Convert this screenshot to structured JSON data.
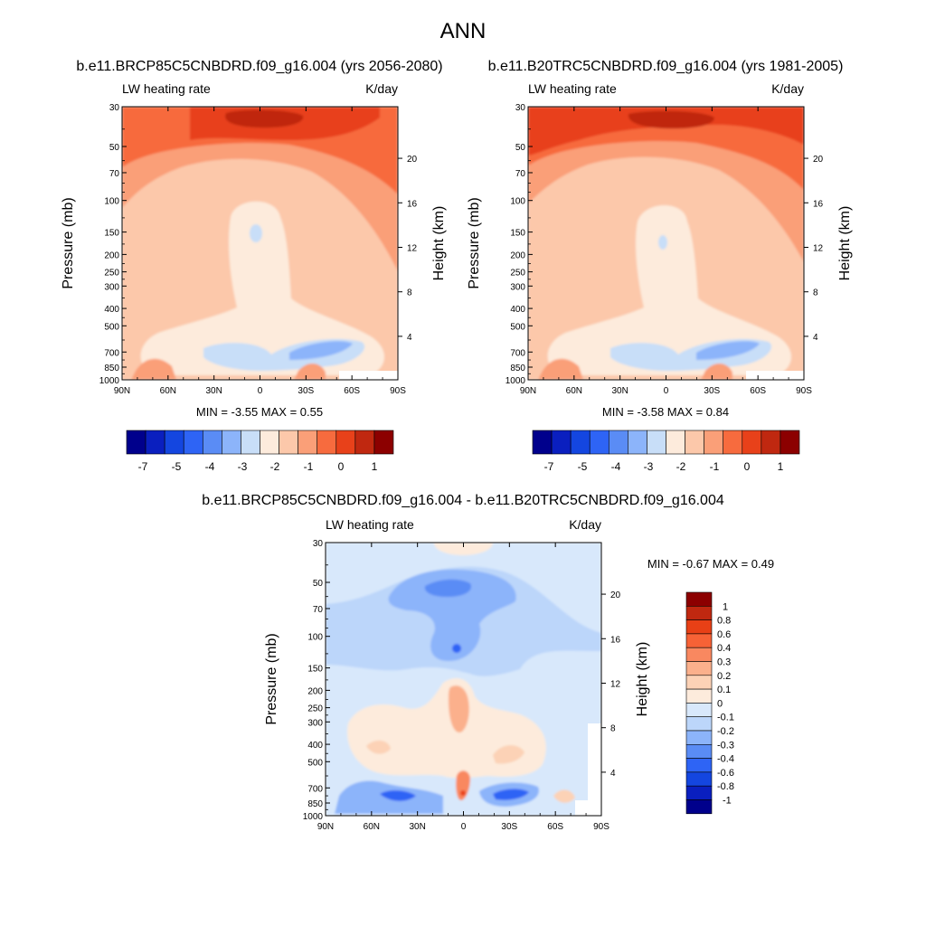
{
  "page": {
    "title": "ANN"
  },
  "colormaps": {
    "blue_red_13": [
      "#00008c",
      "#0a1fbf",
      "#1446e0",
      "#2e64f5",
      "#5a8cf5",
      "#8cb4fa",
      "#c8def8",
      "#fdebdc",
      "#fcc8aa",
      "#fa9f78",
      "#f76b3e",
      "#e8411a",
      "#c02810",
      "#8c0000"
    ],
    "diff_16": [
      "#00008c",
      "#0a1fbf",
      "#1446e0",
      "#2e64f5",
      "#5a8cf5",
      "#8cb4fa",
      "#bcd6fa",
      "#d8e8fb",
      "#fdebdc",
      "#fcd2b6",
      "#fbb08c",
      "#f98860",
      "#f76236",
      "#e84016",
      "#c02810",
      "#8c0000"
    ]
  },
  "chart_data": [
    {
      "type": "heatmap",
      "id": "panel1",
      "title": "b.e11.BRCP85C5CNBDRD.f09_g16.004 (yrs 2056-2080)",
      "left_label": "LW heating rate",
      "right_label": "K/day",
      "ylabel": "Pressure (mb)",
      "y2label": "Height (km)",
      "x_ticks": [
        "90N",
        "60N",
        "30N",
        "0",
        "30S",
        "60S",
        "90S"
      ],
      "x_tick_values": [
        90,
        60,
        30,
        0,
        -30,
        -60,
        -90
      ],
      "y_ticks": [
        30,
        50,
        70,
        100,
        150,
        200,
        250,
        300,
        400,
        500,
        700,
        850,
        1000
      ],
      "y2_ticks": [
        20,
        16,
        12,
        8,
        4
      ],
      "ylim": [
        30,
        1000
      ],
      "xlim": [
        90,
        -90
      ],
      "y_scale": "log",
      "min_label": "MIN =  -3.55  MAX =   0.55",
      "colorbar": {
        "orientation": "horizontal",
        "labels": [
          "-7",
          "-5",
          "-4",
          "-3",
          "-2",
          "-1",
          "0",
          "1"
        ]
      },
      "contour_levels": [
        -7,
        -6,
        -5,
        -4.5,
        -4,
        -3.5,
        -3,
        -2.5,
        -2,
        -1.5,
        -1,
        -0.5,
        0,
        0.5,
        1
      ],
      "grid": false
    },
    {
      "type": "heatmap",
      "id": "panel2",
      "title": "b.e11.B20TRC5CNBDRD.f09_g16.004 (yrs 1981-2005)",
      "left_label": "LW heating rate",
      "right_label": "K/day",
      "ylabel": "Pressure (mb)",
      "y2label": "Height (km)",
      "x_ticks": [
        "90N",
        "60N",
        "30N",
        "0",
        "30S",
        "60S",
        "90S"
      ],
      "x_tick_values": [
        90,
        60,
        30,
        0,
        -30,
        -60,
        -90
      ],
      "y_ticks": [
        30,
        50,
        70,
        100,
        150,
        200,
        250,
        300,
        400,
        500,
        700,
        850,
        1000
      ],
      "y2_ticks": [
        20,
        16,
        12,
        8,
        4
      ],
      "ylim": [
        30,
        1000
      ],
      "xlim": [
        90,
        -90
      ],
      "y_scale": "log",
      "min_label": "MIN =  -3.58  MAX =   0.84",
      "colorbar": {
        "orientation": "horizontal",
        "labels": [
          "-7",
          "-5",
          "-4",
          "-3",
          "-2",
          "-1",
          "0",
          "1"
        ]
      },
      "grid": false
    },
    {
      "type": "heatmap",
      "id": "panel3",
      "title": "b.e11.BRCP85C5CNBDRD.f09_g16.004 - b.e11.B20TRC5CNBDRD.f09_g16.004",
      "left_label": "LW heating rate",
      "right_label": "K/day",
      "ylabel": "Pressure (mb)",
      "y2label": "Height (km)",
      "x_ticks": [
        "90N",
        "60N",
        "30N",
        "0",
        "30S",
        "60S",
        "90S"
      ],
      "x_tick_values": [
        90,
        60,
        30,
        0,
        -30,
        -60,
        -90
      ],
      "y_ticks": [
        30,
        50,
        70,
        100,
        150,
        200,
        250,
        300,
        400,
        500,
        700,
        850,
        1000
      ],
      "y2_ticks": [
        20,
        16,
        12,
        8,
        4
      ],
      "ylim": [
        30,
        1000
      ],
      "xlim": [
        90,
        -90
      ],
      "y_scale": "log",
      "min_label": "MIN =  -0.67  MAX =   0.49",
      "colorbar": {
        "orientation": "vertical",
        "labels": [
          "1",
          "0.8",
          "0.6",
          "0.4",
          "0.3",
          "0.2",
          "0.1",
          "0",
          "-0.1",
          "-0.2",
          "-0.3",
          "-0.4",
          "-0.6",
          "-0.8",
          "-1"
        ]
      },
      "grid": false
    }
  ]
}
